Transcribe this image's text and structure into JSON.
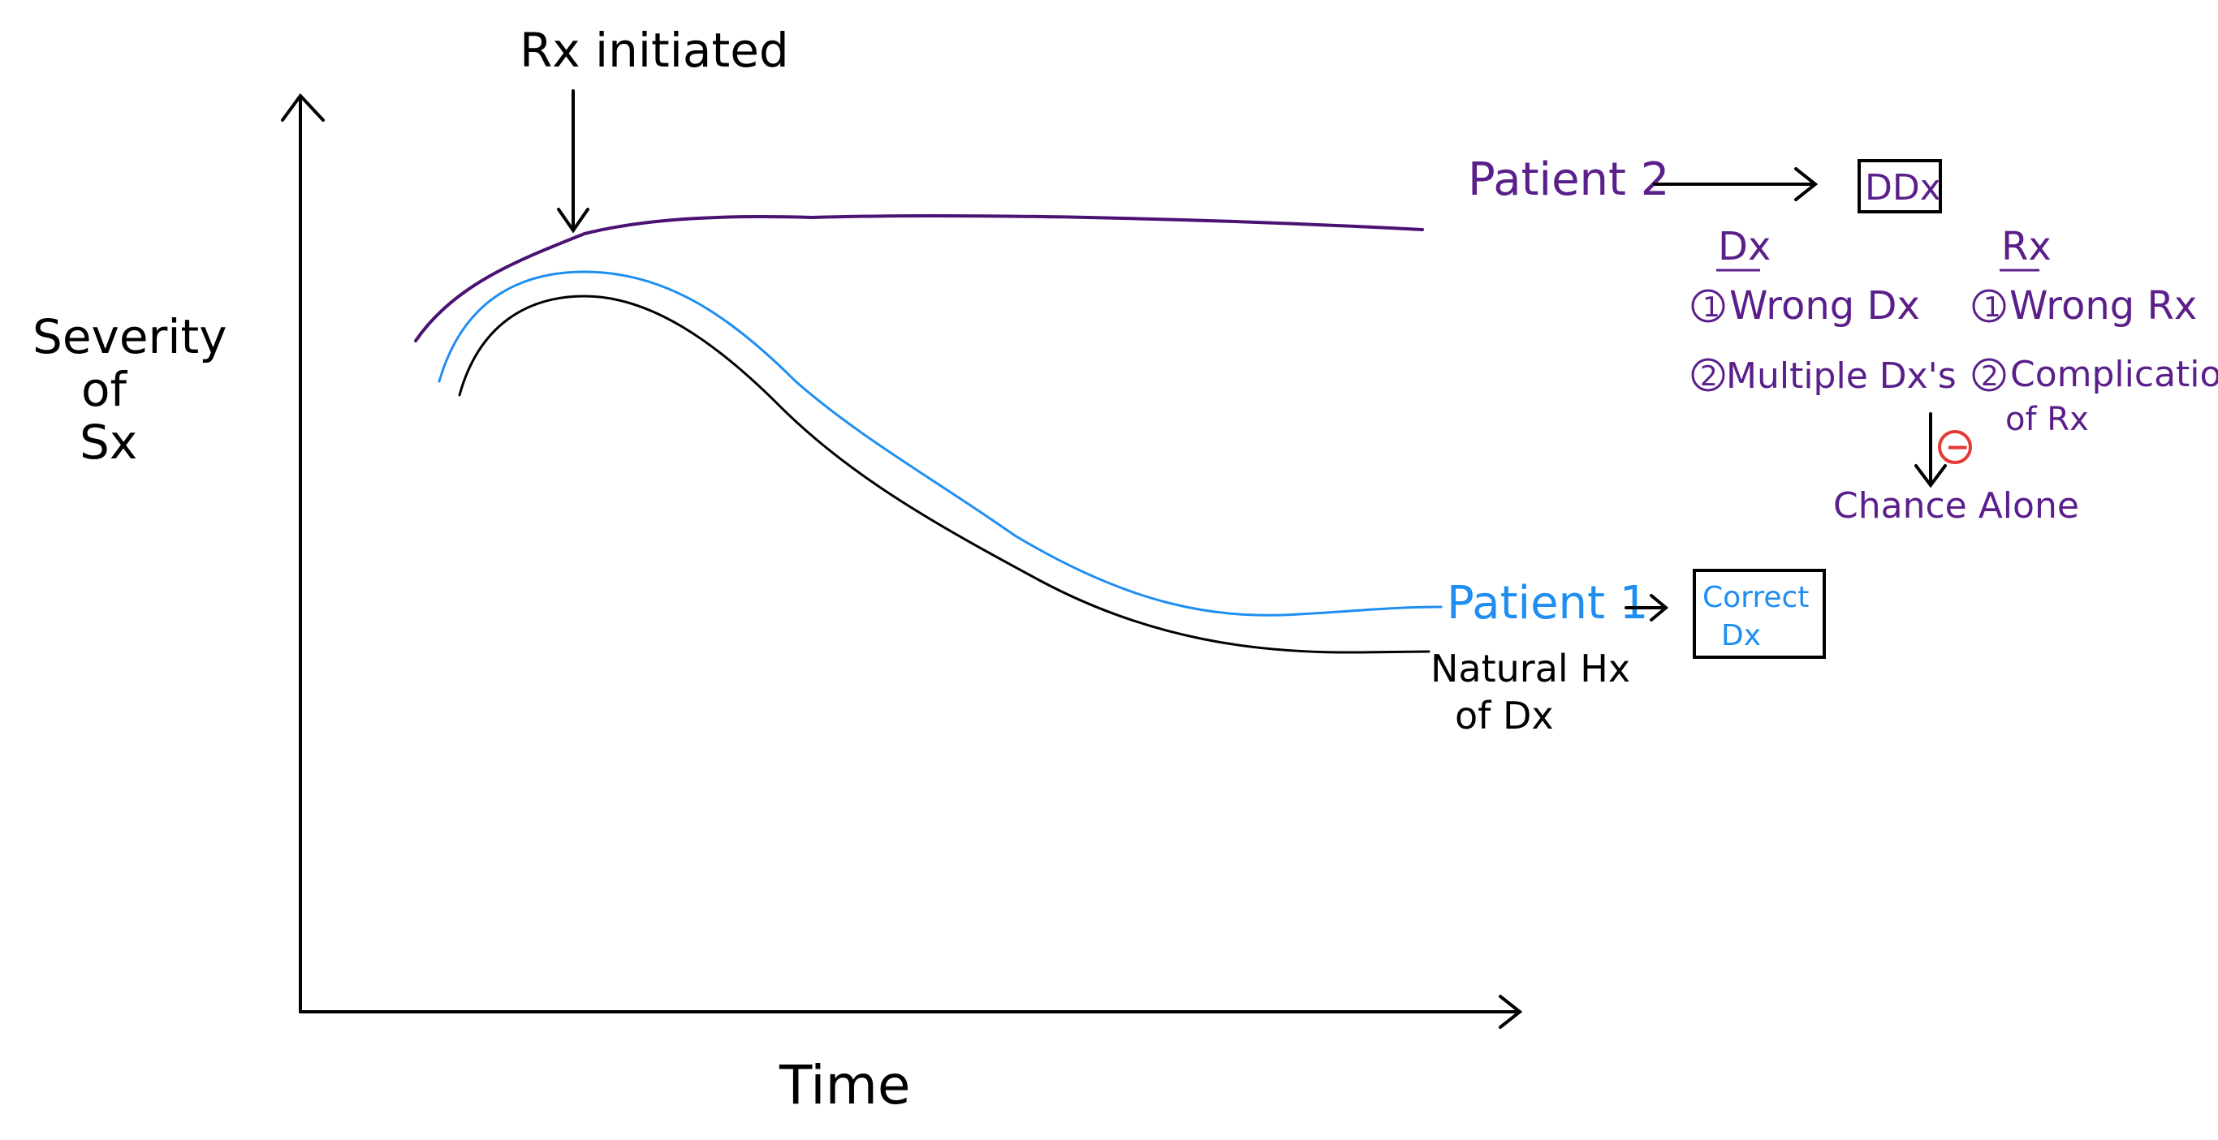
{
  "colors": {
    "ink": "#000000",
    "purple": "#4b1273",
    "purple_text": "#5a1f8a",
    "blue": "#1f8ef1",
    "red": "#e53935"
  },
  "axes": {
    "y_label_lines": [
      "Severity",
      "of",
      "Sx"
    ],
    "x_label": "Time"
  },
  "annotation_rx": "Rx initiated",
  "lines": {
    "patient1_label": "Patient 1",
    "patient2_label": "Patient 2",
    "natural_label_lines": [
      "Natural Hx",
      "of Dx"
    ]
  },
  "boxes": {
    "ddx": "DDx",
    "correct_lines": [
      "Correct",
      "Dx"
    ]
  },
  "dx_column": {
    "heading": "Dx",
    "item1_number": "1",
    "item1": "Wrong Dx",
    "item2_number": "2",
    "item2": "Multiple Dx's"
  },
  "rx_column": {
    "heading": "Rx",
    "item1_number": "1",
    "item1": "Wrong Rx",
    "item2_number": "2",
    "item2_lines": [
      "Complication",
      "of Rx"
    ]
  },
  "minus_sign": "−",
  "chance_alone": "Chance Alone"
}
